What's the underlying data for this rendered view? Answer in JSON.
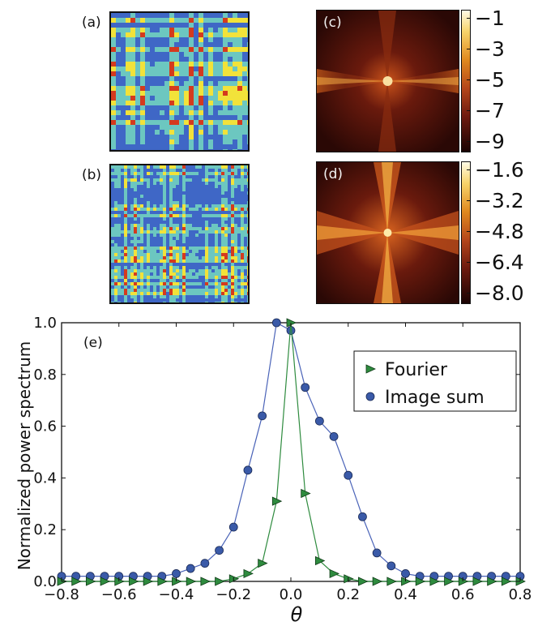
{
  "panels": {
    "a": {
      "label": "(a)"
    },
    "b": {
      "label": "(b)"
    },
    "c": {
      "label": "(c)",
      "colorbar_ticks": [
        "−1",
        "−3",
        "−5",
        "−7",
        "−9"
      ],
      "colorbar_range": [
        -10,
        -1
      ]
    },
    "d": {
      "label": "(d)",
      "colorbar_ticks": [
        "−1.6",
        "−3.2",
        "−4.8",
        "−6.4",
        "−8.0"
      ],
      "colorbar_range": [
        -8.0,
        -1.3
      ]
    }
  },
  "colors": {
    "fourier": "#2e8b3e",
    "image_sum": "#3a5aa8",
    "image_sum_line": "#4a63b8",
    "texture_low": "#3f67c6",
    "texture_mid": "#6cc7c0",
    "texture_high": "#f2e23a",
    "texture_peak": "#d43a1e",
    "heat_dark": "#2a0805",
    "heat_light": "#fff6c8"
  },
  "chart_data": {
    "type": "line",
    "panel_label": "(e)",
    "xlabel": "θ",
    "ylabel": "Normalized power spectrum",
    "xlim": [
      -0.8,
      0.8
    ],
    "ylim": [
      0.0,
      1.0
    ],
    "xticks": [
      "−0.8",
      "−0.6",
      "−0.4",
      "−0.2",
      "0.0",
      "0.2",
      "0.4",
      "0.6",
      "0.8"
    ],
    "yticks": [
      "0.0",
      "0.2",
      "0.4",
      "0.6",
      "0.8",
      "1.0"
    ],
    "legend_position": "upper right",
    "series": [
      {
        "name": "Fourier",
        "marker": "triangle-right",
        "x": [
          -0.8,
          -0.75,
          -0.7,
          -0.65,
          -0.6,
          -0.55,
          -0.5,
          -0.45,
          -0.4,
          -0.35,
          -0.3,
          -0.25,
          -0.2,
          -0.15,
          -0.1,
          -0.05,
          0.0,
          0.05,
          0.1,
          0.15,
          0.2,
          0.25,
          0.3,
          0.35,
          0.4,
          0.45,
          0.5,
          0.55,
          0.6,
          0.65,
          0.7,
          0.75,
          0.8
        ],
        "y": [
          0.0,
          0.0,
          0.0,
          0.0,
          0.0,
          0.0,
          0.0,
          0.0,
          0.0,
          0.0,
          0.0,
          0.0,
          0.01,
          0.03,
          0.07,
          0.31,
          1.0,
          0.34,
          0.08,
          0.03,
          0.01,
          0.0,
          0.0,
          0.0,
          0.0,
          0.0,
          0.0,
          0.0,
          0.0,
          0.0,
          0.0,
          0.0,
          0.0
        ]
      },
      {
        "name": "Image sum",
        "marker": "circle",
        "x": [
          -0.8,
          -0.75,
          -0.7,
          -0.65,
          -0.6,
          -0.55,
          -0.5,
          -0.45,
          -0.4,
          -0.35,
          -0.3,
          -0.25,
          -0.2,
          -0.15,
          -0.1,
          -0.05,
          0.0,
          0.05,
          0.1,
          0.15,
          0.2,
          0.25,
          0.3,
          0.35,
          0.4,
          0.45,
          0.5,
          0.55,
          0.6,
          0.65,
          0.7,
          0.75,
          0.8
        ],
        "y": [
          0.02,
          0.02,
          0.02,
          0.02,
          0.02,
          0.02,
          0.02,
          0.02,
          0.03,
          0.05,
          0.07,
          0.12,
          0.21,
          0.43,
          0.64,
          1.0,
          0.97,
          0.75,
          0.62,
          0.56,
          0.41,
          0.25,
          0.11,
          0.06,
          0.03,
          0.02,
          0.02,
          0.02,
          0.02,
          0.02,
          0.02,
          0.02,
          0.02
        ]
      }
    ]
  }
}
